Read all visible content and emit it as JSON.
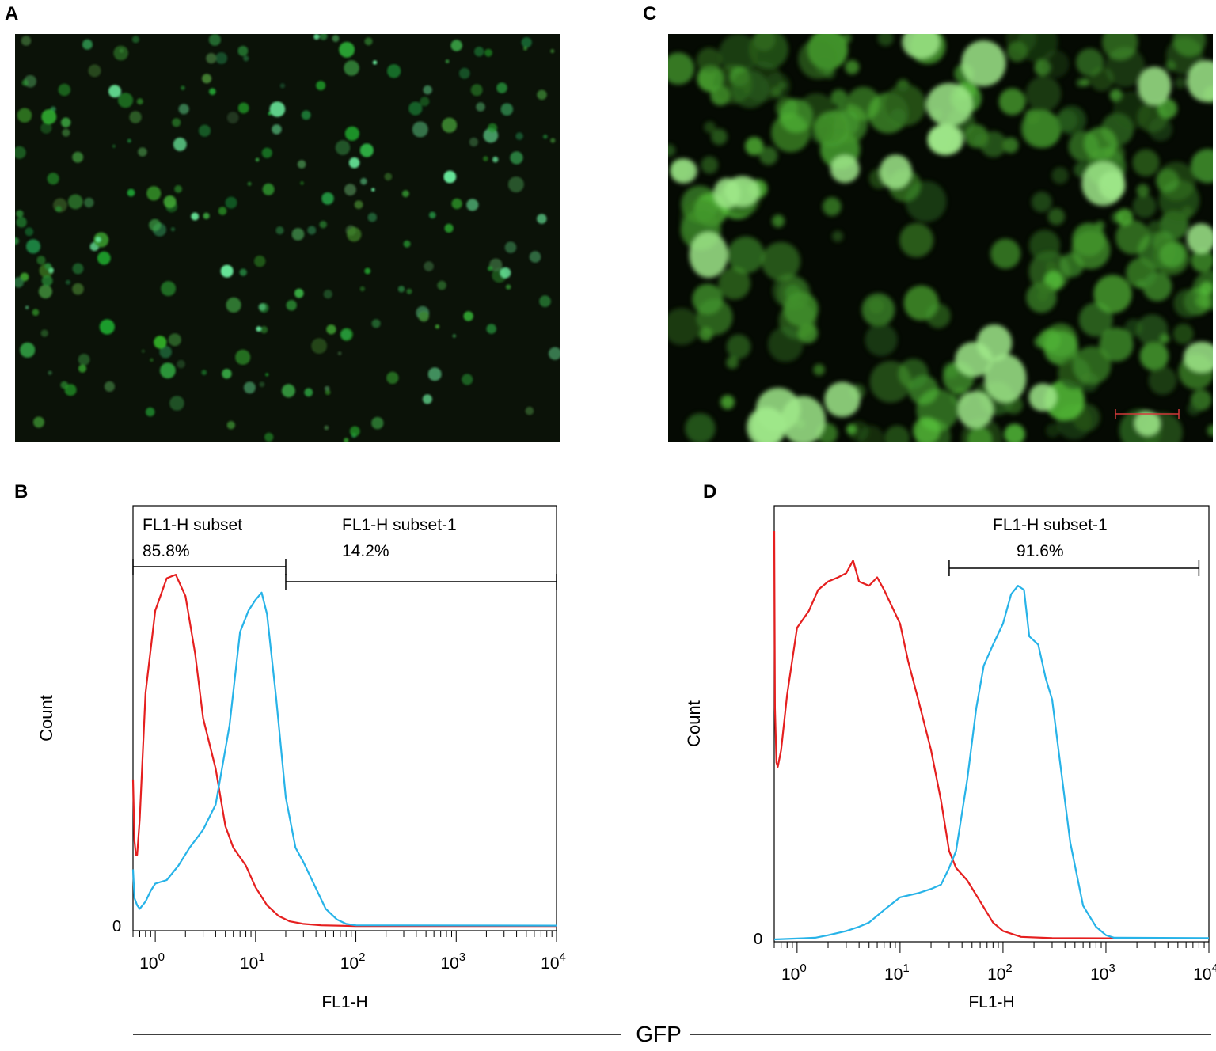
{
  "panels": [
    {
      "letter": "A"
    },
    {
      "letter": "B"
    },
    {
      "letter": "C"
    },
    {
      "letter": "D"
    }
  ],
  "microscopy": {
    "A": {
      "style": "sparse small bright green cells on black"
    },
    "C": {
      "style": "dense large green cell clusters on black",
      "scale_bar_color": "#d23a3a"
    }
  },
  "shared_xlabel": "GFP",
  "colors": {
    "control": "#e51f1f",
    "gfp": "#27b3e8",
    "cell": "#4fd15a",
    "bg": "#000000"
  },
  "chart_data": [
    {
      "panel": "B",
      "type": "line",
      "xscale": "log",
      "xlim": [
        0.6,
        10000
      ],
      "xticks": [
        "10^0",
        "10^1",
        "10^2",
        "10^3",
        "10^4"
      ],
      "tick_base": "10",
      "tick_exps": [
        "0",
        "1",
        "2",
        "3",
        "4"
      ],
      "xlabel": "FL1-H",
      "ylabel": "Count",
      "y_zero_label": "0",
      "ylim": [
        0,
        1
      ],
      "gates": [
        {
          "name": "FL1-H subset",
          "percent": "85.8%",
          "range": [
            0.6,
            20
          ]
        },
        {
          "name": "FL1-H subset-1",
          "percent": "14.2%",
          "range": [
            20,
            10000
          ]
        }
      ],
      "series": [
        {
          "color": "#e51f1f",
          "x": [
            0.6,
            0.62,
            0.64,
            0.66,
            0.7,
            0.8,
            1.0,
            1.3,
            1.6,
            2.0,
            2.5,
            3.0,
            4.0,
            5.0,
            6.0,
            8.0,
            10.0,
            13.0,
            17.0,
            22.0,
            30.0,
            45.0,
            100.0,
            10000.0
          ],
          "y": [
            0.41,
            0.24,
            0.2,
            0.2,
            0.3,
            0.65,
            0.88,
            0.97,
            0.98,
            0.92,
            0.76,
            0.58,
            0.44,
            0.28,
            0.22,
            0.17,
            0.11,
            0.06,
            0.03,
            0.015,
            0.008,
            0.004,
            0.002,
            0.002
          ]
        },
        {
          "color": "#27b3e8",
          "x": [
            0.6,
            0.62,
            0.66,
            0.7,
            0.8,
            0.9,
            1.0,
            1.3,
            1.7,
            2.2,
            3.0,
            4.0,
            5.5,
            7.0,
            8.5,
            10.0,
            11.5,
            13.0,
            16.0,
            20.0,
            25.0,
            30.0,
            38.0,
            50.0,
            65.0,
            80.0,
            100.0,
            10000.0
          ],
          "y": [
            0.16,
            0.08,
            0.06,
            0.05,
            0.07,
            0.1,
            0.12,
            0.13,
            0.17,
            0.22,
            0.27,
            0.34,
            0.56,
            0.82,
            0.88,
            0.91,
            0.93,
            0.87,
            0.64,
            0.36,
            0.22,
            0.18,
            0.12,
            0.05,
            0.02,
            0.008,
            0.004,
            0.003
          ]
        }
      ]
    },
    {
      "panel": "D",
      "type": "line",
      "xscale": "log",
      "xlim": [
        0.6,
        10000
      ],
      "xticks": [
        "10^0",
        "10^1",
        "10^2",
        "10^3",
        "10^4"
      ],
      "tick_base": "10",
      "tick_exps": [
        "0",
        "1",
        "2",
        "3",
        "4"
      ],
      "xlabel": "FL1-H",
      "ylabel": "Count",
      "y_zero_label": "0",
      "ylim": [
        0,
        1
      ],
      "gates": [
        {
          "name": "FL1-H subset-1",
          "percent": "91.6%",
          "range": [
            30,
            8000
          ]
        }
      ],
      "series": [
        {
          "color": "#e51f1f",
          "x": [
            0.6,
            0.61,
            0.63,
            0.65,
            0.7,
            0.8,
            1.0,
            1.3,
            1.6,
            2.0,
            2.5,
            3.0,
            3.5,
            4.0,
            5.0,
            6.0,
            7.0,
            8.0,
            10.0,
            12.0,
            15.0,
            20.0,
            25.0,
            30.0,
            35.0,
            45.0,
            60.0,
            80.0,
            100.0,
            150.0,
            300.0,
            10000.0
          ],
          "y": [
            0.97,
            0.55,
            0.42,
            0.41,
            0.45,
            0.58,
            0.74,
            0.78,
            0.83,
            0.85,
            0.86,
            0.87,
            0.9,
            0.85,
            0.84,
            0.86,
            0.83,
            0.8,
            0.75,
            0.66,
            0.57,
            0.45,
            0.33,
            0.21,
            0.17,
            0.14,
            0.09,
            0.04,
            0.02,
            0.006,
            0.003,
            0.002
          ]
        },
        {
          "color": "#27b3e8",
          "x": [
            0.6,
            1.0,
            1.5,
            2.0,
            3.0,
            4.0,
            5.0,
            7.0,
            10.0,
            15.0,
            20.0,
            25.0,
            30.0,
            35.0,
            45.0,
            55.0,
            65.0,
            80.0,
            100.0,
            120.0,
            140.0,
            160.0,
            180.0,
            220.0,
            260.0,
            300.0,
            350.0,
            450.0,
            600.0,
            800.0,
            1000.0,
            1200.0,
            10000.0
          ],
          "y": [
            0.0,
            0.002,
            0.004,
            0.01,
            0.02,
            0.03,
            0.04,
            0.07,
            0.1,
            0.11,
            0.12,
            0.13,
            0.17,
            0.21,
            0.38,
            0.55,
            0.65,
            0.7,
            0.75,
            0.82,
            0.84,
            0.83,
            0.72,
            0.7,
            0.62,
            0.57,
            0.44,
            0.23,
            0.08,
            0.03,
            0.01,
            0.004,
            0.003
          ]
        }
      ]
    }
  ]
}
